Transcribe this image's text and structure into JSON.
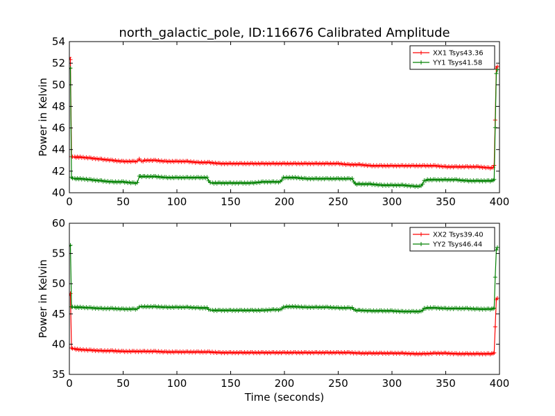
{
  "chart_data": [
    {
      "type": "line",
      "title": "north_galactic_pole, ID:116676 Calibrated Amplitude",
      "xlabel": "",
      "ylabel": "Power in Kelvin",
      "xlim": [
        0,
        400
      ],
      "ylim": [
        40,
        54
      ],
      "xticks": [
        "0",
        "50",
        "100",
        "150",
        "200",
        "250",
        "300",
        "350",
        "400"
      ],
      "yticks": [
        "40",
        "42",
        "44",
        "46",
        "48",
        "50",
        "52",
        "54"
      ],
      "grid": false,
      "legend_position": "top-right",
      "series": [
        {
          "name": "XX1 Tsys43.36",
          "color": "#ff0000",
          "marker": "+",
          "x": [
            0,
            1,
            2,
            3,
            5,
            10,
            20,
            30,
            40,
            50,
            60,
            63,
            65,
            67,
            70,
            80,
            90,
            100,
            110,
            120,
            130,
            140,
            150,
            160,
            170,
            180,
            190,
            200,
            210,
            220,
            230,
            240,
            250,
            260,
            270,
            280,
            290,
            300,
            310,
            320,
            330,
            340,
            350,
            360,
            370,
            380,
            390,
            394,
            395,
            396,
            397,
            398
          ],
          "y": [
            52.5,
            52.3,
            43.3,
            43.3,
            43.3,
            43.3,
            43.2,
            43.1,
            43.0,
            42.9,
            42.9,
            42.9,
            43.1,
            42.9,
            43.0,
            43.0,
            42.9,
            42.9,
            42.9,
            42.8,
            42.8,
            42.7,
            42.7,
            42.7,
            42.7,
            42.7,
            42.7,
            42.7,
            42.7,
            42.7,
            42.7,
            42.7,
            42.7,
            42.6,
            42.6,
            42.5,
            42.5,
            42.5,
            42.5,
            42.5,
            42.5,
            42.5,
            42.4,
            42.4,
            42.4,
            42.4,
            42.3,
            42.3,
            42.5,
            46.7,
            51.5,
            51.7
          ]
        },
        {
          "name": "YY1 Tsys41.58",
          "color": "#008000",
          "marker": "+",
          "x": [
            0,
            1,
            2,
            3,
            5,
            10,
            20,
            30,
            40,
            50,
            60,
            63,
            65,
            66,
            70,
            80,
            90,
            100,
            110,
            120,
            128,
            131,
            133,
            140,
            150,
            160,
            170,
            180,
            190,
            196,
            199,
            202,
            210,
            220,
            230,
            240,
            250,
            260,
            263,
            266,
            270,
            280,
            290,
            300,
            310,
            320,
            327,
            330,
            333,
            340,
            350,
            360,
            370,
            380,
            390,
            394,
            395,
            396,
            397,
            398
          ],
          "y": [
            51.5,
            51.5,
            41.4,
            41.3,
            41.3,
            41.3,
            41.2,
            41.1,
            41.0,
            41.0,
            40.9,
            40.9,
            41.5,
            41.5,
            41.5,
            41.5,
            41.4,
            41.4,
            41.4,
            41.4,
            41.4,
            40.9,
            40.9,
            40.9,
            40.9,
            40.9,
            40.9,
            41.0,
            41.0,
            41.0,
            41.4,
            41.4,
            41.4,
            41.3,
            41.3,
            41.3,
            41.3,
            41.3,
            41.3,
            40.8,
            40.8,
            40.8,
            40.7,
            40.7,
            40.7,
            40.6,
            40.6,
            41.1,
            41.2,
            41.2,
            41.2,
            41.2,
            41.1,
            41.1,
            41.1,
            41.1,
            41.2,
            46.0,
            51.0,
            51.4
          ]
        }
      ]
    },
    {
      "type": "line",
      "title": "",
      "xlabel": "Time (seconds)",
      "ylabel": "Power in Kelvin",
      "xlim": [
        0,
        400
      ],
      "ylim": [
        35,
        60
      ],
      "xticks": [
        "0",
        "50",
        "100",
        "150",
        "200",
        "250",
        "300",
        "350",
        "400"
      ],
      "yticks": [
        "35",
        "40",
        "45",
        "50",
        "55",
        "60"
      ],
      "grid": false,
      "legend_position": "top-right",
      "series": [
        {
          "name": "XX2 Tsys39.40",
          "color": "#ff0000",
          "marker": "+",
          "x": [
            0,
            1,
            2,
            3,
            5,
            10,
            20,
            30,
            40,
            50,
            60,
            70,
            80,
            90,
            100,
            110,
            120,
            130,
            140,
            150,
            160,
            170,
            180,
            190,
            200,
            210,
            220,
            230,
            240,
            250,
            260,
            270,
            280,
            290,
            300,
            310,
            320,
            330,
            340,
            350,
            360,
            370,
            380,
            390,
            394,
            395,
            396,
            397,
            398
          ],
          "y": [
            48.0,
            48.3,
            39.3,
            39.2,
            39.2,
            39.1,
            39.0,
            38.9,
            38.9,
            38.8,
            38.8,
            38.8,
            38.8,
            38.7,
            38.7,
            38.7,
            38.7,
            38.7,
            38.6,
            38.6,
            38.6,
            38.6,
            38.6,
            38.6,
            38.6,
            38.6,
            38.6,
            38.6,
            38.6,
            38.6,
            38.6,
            38.5,
            38.5,
            38.5,
            38.5,
            38.5,
            38.4,
            38.4,
            38.5,
            38.5,
            38.4,
            38.4,
            38.4,
            38.4,
            38.4,
            38.5,
            42.8,
            47.3,
            47.6
          ]
        },
        {
          "name": "YY2 Tsys46.44",
          "color": "#008000",
          "marker": "+",
          "x": [
            0,
            1,
            2,
            3,
            5,
            10,
            20,
            30,
            40,
            50,
            60,
            63,
            65,
            67,
            70,
            80,
            90,
            100,
            110,
            120,
            128,
            131,
            133,
            140,
            150,
            160,
            170,
            180,
            190,
            196,
            199,
            202,
            210,
            220,
            230,
            240,
            250,
            260,
            263,
            266,
            270,
            280,
            290,
            300,
            310,
            320,
            327,
            330,
            333,
            340,
            350,
            360,
            370,
            380,
            390,
            394,
            395,
            396,
            397,
            398
          ],
          "y": [
            56.2,
            56.3,
            46.1,
            46.1,
            46.1,
            46.1,
            46.0,
            45.9,
            45.9,
            45.8,
            45.8,
            45.8,
            46.1,
            46.2,
            46.2,
            46.2,
            46.1,
            46.1,
            46.1,
            46.0,
            46.0,
            45.6,
            45.6,
            45.6,
            45.6,
            45.6,
            45.6,
            45.6,
            45.7,
            45.7,
            46.1,
            46.2,
            46.2,
            46.1,
            46.1,
            46.1,
            46.0,
            46.0,
            46.0,
            45.6,
            45.6,
            45.5,
            45.5,
            45.5,
            45.4,
            45.4,
            45.4,
            45.9,
            46.0,
            46.0,
            45.9,
            45.9,
            45.9,
            45.8,
            45.8,
            45.8,
            45.9,
            51.0,
            55.5,
            56.0
          ]
        }
      ]
    }
  ]
}
